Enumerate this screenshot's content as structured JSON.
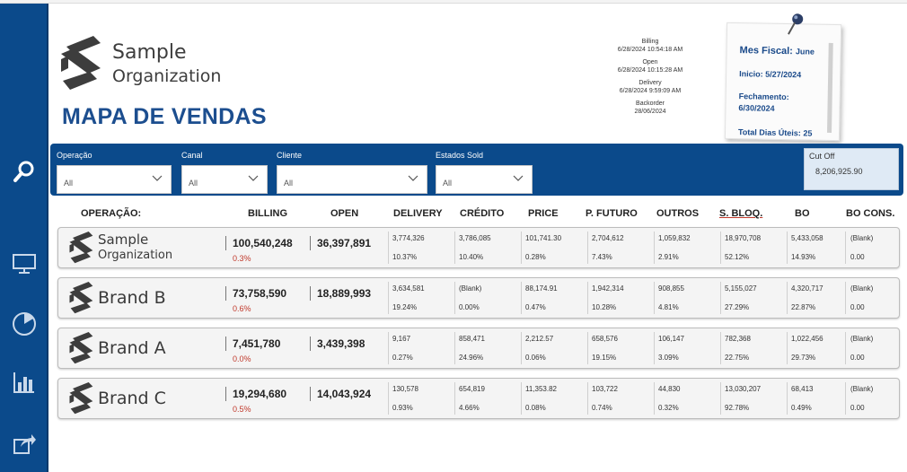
{
  "header": {
    "org_name_line1": "Sample",
    "org_name_line2": "Organization",
    "title": "MAPA DE VENDAS"
  },
  "updates": [
    {
      "label": "Billing",
      "time": "6/28/2024 10:54:18 AM"
    },
    {
      "label": "Open",
      "time": "6/28/2024 10:15:28 AM"
    },
    {
      "label": "Delivery",
      "time": "6/28/2024 9:59:09 AM"
    },
    {
      "label": "Backorder",
      "time": "28/06/2024"
    }
  ],
  "note": {
    "mes_fiscal_label": "Mes Fiscal:",
    "mes_fiscal_value": "June",
    "inicio_label": "Inicio:",
    "inicio_value": "5/27/2024",
    "fechamento_label": "Fechamento:",
    "fechamento_value": "6/30/2024",
    "total_label": "Total Dias Úteis:",
    "total_value": "25"
  },
  "filters": [
    {
      "label": "Operação",
      "value": "All"
    },
    {
      "label": "Canal",
      "value": "All"
    },
    {
      "label": "Cliente",
      "value": "All"
    },
    {
      "label": "Estados Sold",
      "value": "All"
    }
  ],
  "cutoff": {
    "label": "Cut Off",
    "value": "8,206,925.90"
  },
  "columns": [
    "OPERAÇÃO:",
    "BILLING",
    "OPEN",
    "DELIVERY",
    "CRÉDITO",
    "PRICE",
    "P. FUTURO",
    "OUTROS",
    "S. BLOQ.",
    "BO",
    "BO CONS."
  ],
  "rows": [
    {
      "name": "Sample",
      "name2": "Organization",
      "billing": "100,540,248",
      "billing_pct": "0.3%",
      "open": "36,397,891",
      "metrics": [
        {
          "value": "3,774,326",
          "pct": "10.37%"
        },
        {
          "value": "3,786,085",
          "pct": "10.40%"
        },
        {
          "value": "101,741.30",
          "pct": "0.28%"
        },
        {
          "value": "2,704,612",
          "pct": "7.43%"
        },
        {
          "value": "1,059,832",
          "pct": "2.91%"
        },
        {
          "value": "18,970,708",
          "pct": "52.12%"
        },
        {
          "value": "5,433,058",
          "pct": "14.93%"
        },
        {
          "value": "(Blank)",
          "pct": "0.00"
        }
      ]
    },
    {
      "name": "Brand B",
      "name2": "",
      "billing": "73,758,590",
      "billing_pct": "0.6%",
      "open": "18,889,993",
      "metrics": [
        {
          "value": "3,634,581",
          "pct": "19.24%"
        },
        {
          "value": "(Blank)",
          "pct": "0.00%"
        },
        {
          "value": "88,174.91",
          "pct": "0.47%"
        },
        {
          "value": "1,942,314",
          "pct": "10.28%"
        },
        {
          "value": "908,855",
          "pct": "4.81%"
        },
        {
          "value": "5,155,027",
          "pct": "27.29%"
        },
        {
          "value": "4,320,717",
          "pct": "22.87%"
        },
        {
          "value": "(Blank)",
          "pct": "0.00"
        }
      ]
    },
    {
      "name": "Brand A",
      "name2": "",
      "billing": "7,451,780",
      "billing_pct": "0.0%",
      "open": "3,439,398",
      "metrics": [
        {
          "value": "9,167",
          "pct": "0.27%"
        },
        {
          "value": "858,471",
          "pct": "24.96%"
        },
        {
          "value": "2,212.57",
          "pct": "0.06%"
        },
        {
          "value": "658,576",
          "pct": "19.15%"
        },
        {
          "value": "106,147",
          "pct": "3.09%"
        },
        {
          "value": "782,368",
          "pct": "22.75%"
        },
        {
          "value": "1,022,456",
          "pct": "29.73%"
        },
        {
          "value": "(Blank)",
          "pct": "0.00"
        }
      ]
    },
    {
      "name": "Brand C",
      "name2": "",
      "billing": "19,294,680",
      "billing_pct": "0.5%",
      "open": "14,043,924",
      "metrics": [
        {
          "value": "130,578",
          "pct": "0.93%"
        },
        {
          "value": "654,819",
          "pct": "4.66%"
        },
        {
          "value": "11,353.82",
          "pct": "0.08%"
        },
        {
          "value": "103,722",
          "pct": "0.74%"
        },
        {
          "value": "44,830",
          "pct": "0.32%"
        },
        {
          "value": "13,030,207",
          "pct": "92.78%"
        },
        {
          "value": "68,413",
          "pct": "0.49%"
        },
        {
          "value": "(Blank)",
          "pct": "0.00"
        }
      ]
    }
  ],
  "colors": {
    "primary": "#0b4a8b",
    "title": "#1c4e8f",
    "negative": "#c0392b"
  },
  "sidebar_icons": [
    "search-icon",
    "monitor-icon",
    "pie-chart-icon",
    "bar-chart-icon",
    "share-icon"
  ]
}
